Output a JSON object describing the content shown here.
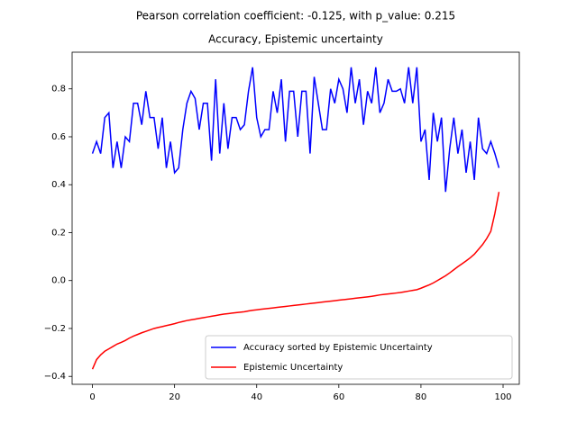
{
  "chart_data": {
    "type": "line",
    "title": "Pearson correlation coefficient: -0.125, with p_value: 0.215",
    "subtitle": "Accuracy, Epistemic uncertainty",
    "x": [
      0,
      1,
      2,
      3,
      4,
      5,
      6,
      7,
      8,
      9,
      10,
      11,
      12,
      13,
      14,
      15,
      16,
      17,
      18,
      19,
      20,
      21,
      22,
      23,
      24,
      25,
      26,
      27,
      28,
      29,
      30,
      31,
      32,
      33,
      34,
      35,
      36,
      37,
      38,
      39,
      40,
      41,
      42,
      43,
      44,
      45,
      46,
      47,
      48,
      49,
      50,
      51,
      52,
      53,
      54,
      55,
      56,
      57,
      58,
      59,
      60,
      61,
      62,
      63,
      64,
      65,
      66,
      67,
      68,
      69,
      70,
      71,
      72,
      73,
      74,
      75,
      76,
      77,
      78,
      79,
      80,
      81,
      82,
      83,
      84,
      85,
      86,
      87,
      88,
      89,
      90,
      91,
      92,
      93,
      94,
      95,
      96,
      97,
      98,
      99
    ],
    "series": [
      {
        "name": "Accuracy sorted by Epistemic Uncertainty",
        "color": "#0000ff",
        "values": [
          0.53,
          0.58,
          0.53,
          0.68,
          0.7,
          0.47,
          0.58,
          0.47,
          0.6,
          0.58,
          0.74,
          0.74,
          0.65,
          0.79,
          0.68,
          0.68,
          0.55,
          0.68,
          0.47,
          0.58,
          0.45,
          0.47,
          0.63,
          0.74,
          0.79,
          0.76,
          0.63,
          0.74,
          0.74,
          0.5,
          0.84,
          0.53,
          0.74,
          0.55,
          0.68,
          0.68,
          0.63,
          0.65,
          0.79,
          0.89,
          0.68,
          0.6,
          0.63,
          0.63,
          0.79,
          0.7,
          0.84,
          0.58,
          0.79,
          0.79,
          0.6,
          0.79,
          0.79,
          0.53,
          0.85,
          0.74,
          0.63,
          0.63,
          0.8,
          0.74,
          0.84,
          0.8,
          0.7,
          0.89,
          0.74,
          0.84,
          0.65,
          0.79,
          0.74,
          0.89,
          0.7,
          0.74,
          0.84,
          0.79,
          0.79,
          0.8,
          0.74,
          0.89,
          0.74,
          0.89,
          0.58,
          0.63,
          0.42,
          0.7,
          0.58,
          0.68,
          0.37,
          0.55,
          0.68,
          0.53,
          0.63,
          0.45,
          0.58,
          0.42,
          0.68,
          0.55,
          0.53,
          0.58,
          0.53,
          0.47
        ]
      },
      {
        "name": "Epistemic Uncertainty",
        "color": "#ff0000",
        "values": [
          -0.37,
          -0.33,
          -0.31,
          -0.295,
          -0.285,
          -0.275,
          -0.265,
          -0.258,
          -0.25,
          -0.24,
          -0.232,
          -0.225,
          -0.218,
          -0.212,
          -0.206,
          -0.2,
          -0.196,
          -0.192,
          -0.188,
          -0.184,
          -0.18,
          -0.175,
          -0.171,
          -0.167,
          -0.164,
          -0.161,
          -0.158,
          -0.155,
          -0.152,
          -0.149,
          -0.146,
          -0.143,
          -0.14,
          -0.138,
          -0.136,
          -0.134,
          -0.132,
          -0.13,
          -0.127,
          -0.124,
          -0.122,
          -0.12,
          -0.118,
          -0.116,
          -0.114,
          -0.112,
          -0.11,
          -0.108,
          -0.106,
          -0.104,
          -0.102,
          -0.1,
          -0.098,
          -0.096,
          -0.094,
          -0.092,
          -0.09,
          -0.088,
          -0.086,
          -0.084,
          -0.082,
          -0.08,
          -0.078,
          -0.076,
          -0.074,
          -0.072,
          -0.07,
          -0.068,
          -0.066,
          -0.063,
          -0.06,
          -0.058,
          -0.056,
          -0.054,
          -0.052,
          -0.05,
          -0.047,
          -0.044,
          -0.041,
          -0.038,
          -0.032,
          -0.025,
          -0.018,
          -0.01,
          0.0,
          0.01,
          0.02,
          0.032,
          0.045,
          0.058,
          0.07,
          0.082,
          0.095,
          0.11,
          0.13,
          0.15,
          0.175,
          0.205,
          0.28,
          0.37
        ]
      }
    ],
    "xlim": [
      -4.95,
      103.95
    ],
    "xticks": [
      0,
      20,
      40,
      60,
      80,
      100
    ],
    "ylim": [
      -0.433,
      0.953
    ],
    "yticks": [
      {
        "value": -0.4,
        "label": "−0.4"
      },
      {
        "value": -0.2,
        "label": "−0.2"
      },
      {
        "value": 0.0,
        "label": "0.0"
      },
      0.2,
      0.4,
      0.6,
      0.8
    ],
    "grid": false,
    "legend": "lower right"
  }
}
